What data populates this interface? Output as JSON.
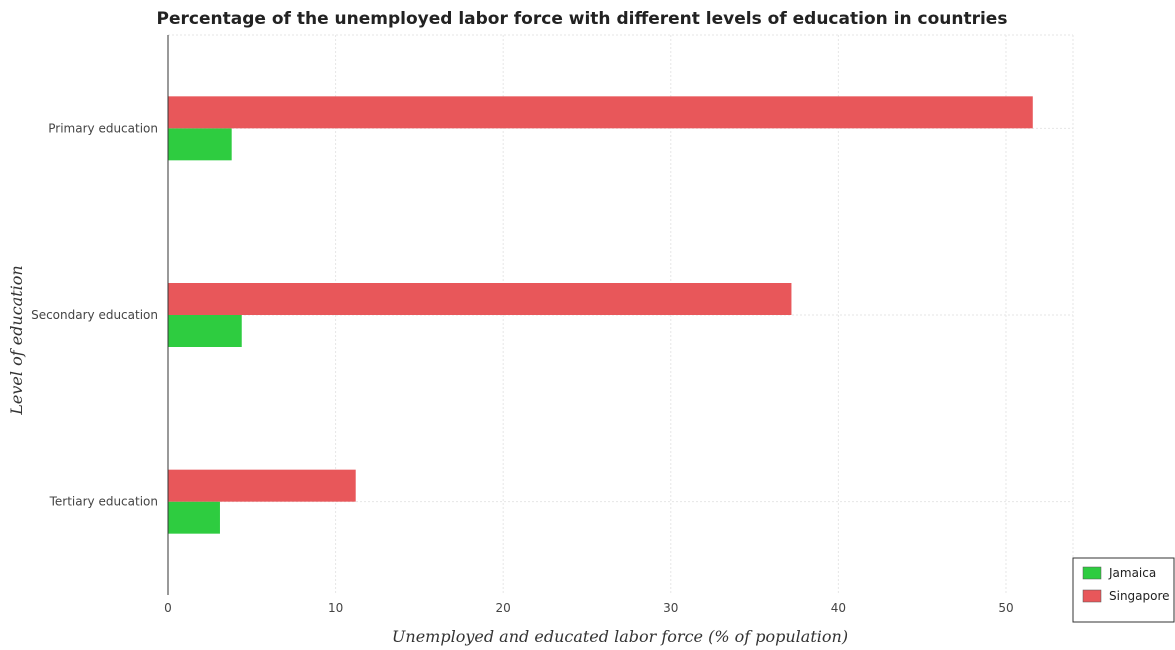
{
  "chart_data": {
    "type": "bar",
    "orientation": "horizontal",
    "title": "Percentage of the unemployed labor force with different levels of education in countries",
    "xlabel": "Unemployed and educated labor force (% of population)",
    "ylabel": "Level of education",
    "categories": [
      "Primary education",
      "Secondary education",
      "Tertiary education"
    ],
    "series": [
      {
        "name": "Jamaica",
        "color": "#2ecc40",
        "values": [
          3.8,
          4.4,
          3.1
        ]
      },
      {
        "name": "Singapore",
        "color": "#e8575a",
        "values": [
          51.6,
          37.2,
          11.2
        ]
      }
    ],
    "xlim": [
      0,
      54
    ],
    "xticks": [
      0,
      10,
      20,
      30,
      40,
      50
    ],
    "grid": true,
    "legend_position": "bottom-right"
  }
}
